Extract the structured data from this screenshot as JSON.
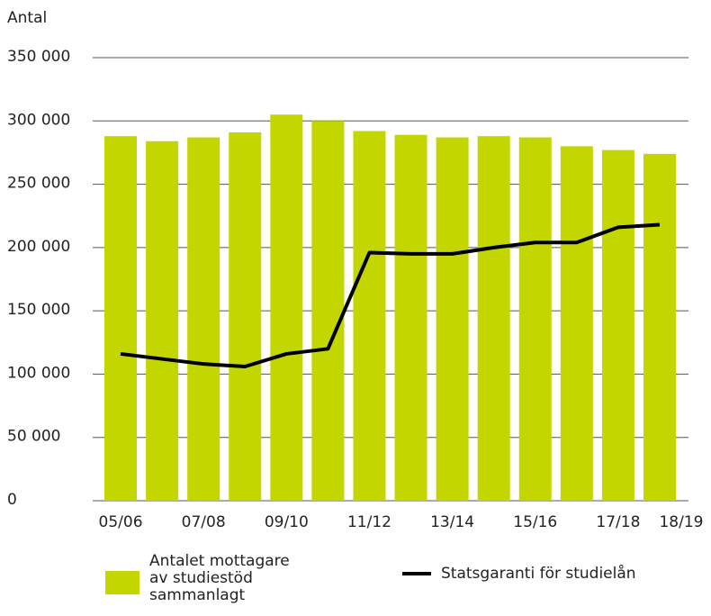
{
  "chart_data": {
    "type": "bar_line",
    "y_label": "Antal",
    "categories": [
      "05/06",
      null,
      "07/08",
      null,
      "09/10",
      null,
      "11/12",
      null,
      "13/14",
      null,
      "15/16",
      null,
      "17/18",
      "18/19"
    ],
    "series": [
      {
        "name": "Antalet mottagare av studiestöd sammanlagt",
        "type": "bar",
        "color": "#c3d600",
        "values": [
          288000,
          284000,
          287000,
          291000,
          305000,
          300000,
          292000,
          289000,
          287000,
          288000,
          287000,
          280000,
          277000,
          274000
        ]
      },
      {
        "name": "Statsgaranti för studielån",
        "type": "line",
        "color": "#000000",
        "values": [
          116000,
          112000,
          108000,
          106000,
          116000,
          120000,
          196000,
          195000,
          195000,
          200000,
          204000,
          204000,
          216000,
          218000
        ]
      }
    ],
    "ylim": [
      0,
      350000
    ],
    "yticks": [
      0,
      {
        "value": 50000,
        "label": "50 000"
      },
      {
        "value": 100000,
        "label": "100 000"
      },
      {
        "value": 150000,
        "label": "150 000"
      },
      {
        "value": 200000,
        "label": "200 000"
      },
      {
        "value": 250000,
        "label": "250 000"
      },
      {
        "value": 300000,
        "label": "300 000"
      },
      {
        "value": 350000,
        "label": "350 000"
      }
    ],
    "grid": true
  }
}
